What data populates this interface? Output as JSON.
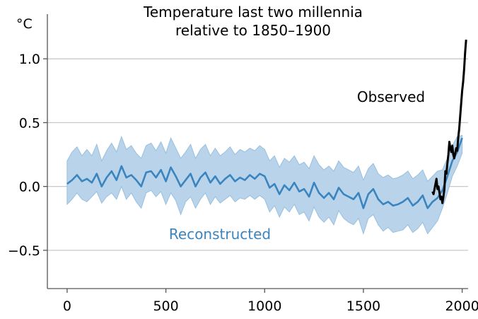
{
  "chart_data": {
    "type": "line",
    "title": [
      "Temperature last two millennia",
      "relative to 1850–1900"
    ],
    "ylabel": "°C",
    "xlabel": "",
    "xlim": [
      -100,
      2030
    ],
    "ylim": [
      -0.8,
      1.35
    ],
    "xticks": [
      0,
      500,
      1000,
      1500,
      2000
    ],
    "yticks": [
      1.0,
      0.5,
      0.0,
      -0.5
    ],
    "ytick_labels": [
      "1.0",
      "0.5",
      "0.0",
      "−0.5"
    ],
    "grid": "horizontal",
    "colors": {
      "reconstructed": "#3a84bf",
      "band": "#b9d4ea",
      "band_edge": "#98bfdf",
      "observed": "#000000",
      "grid": "#c8c8c8"
    },
    "annotations": {
      "reconstructed": "Reconstructed",
      "observed": "Observed"
    },
    "series": [
      {
        "name": "Reconstructed",
        "x": [
          0,
          25,
          50,
          75,
          100,
          125,
          150,
          175,
          200,
          225,
          250,
          275,
          300,
          325,
          350,
          375,
          400,
          425,
          450,
          475,
          500,
          525,
          550,
          575,
          600,
          625,
          650,
          675,
          700,
          725,
          750,
          775,
          800,
          825,
          850,
          875,
          900,
          925,
          950,
          975,
          1000,
          1025,
          1050,
          1075,
          1100,
          1125,
          1150,
          1175,
          1200,
          1225,
          1250,
          1275,
          1300,
          1325,
          1350,
          1375,
          1400,
          1425,
          1450,
          1475,
          1500,
          1525,
          1550,
          1575,
          1600,
          1625,
          1650,
          1675,
          1700,
          1725,
          1750,
          1775,
          1800,
          1825,
          1850,
          1875,
          1900,
          1925,
          1950,
          1975,
          2000
        ],
        "y": [
          0.02,
          0.05,
          0.09,
          0.04,
          0.06,
          0.03,
          0.1,
          0.0,
          0.07,
          0.12,
          0.05,
          0.16,
          0.07,
          0.09,
          0.05,
          0.0,
          0.11,
          0.12,
          0.07,
          0.13,
          0.04,
          0.15,
          0.08,
          0.0,
          0.05,
          0.1,
          0.0,
          0.07,
          0.11,
          0.03,
          0.08,
          0.02,
          0.06,
          0.09,
          0.04,
          0.07,
          0.05,
          0.09,
          0.06,
          0.1,
          0.08,
          -0.01,
          0.02,
          -0.06,
          0.01,
          -0.03,
          0.03,
          -0.04,
          -0.02,
          -0.08,
          0.03,
          -0.05,
          -0.09,
          -0.05,
          -0.1,
          -0.01,
          -0.06,
          -0.08,
          -0.1,
          -0.05,
          -0.17,
          -0.06,
          -0.02,
          -0.1,
          -0.14,
          -0.12,
          -0.15,
          -0.14,
          -0.12,
          -0.09,
          -0.15,
          -0.12,
          -0.07,
          -0.17,
          -0.12,
          -0.09,
          -0.03,
          0.08,
          0.2,
          0.27,
          0.38
        ],
        "lower": [
          -0.14,
          -0.1,
          -0.05,
          -0.1,
          -0.12,
          -0.08,
          -0.04,
          -0.13,
          -0.08,
          -0.05,
          -0.1,
          0.0,
          -0.1,
          -0.05,
          -0.12,
          -0.17,
          -0.05,
          -0.03,
          -0.08,
          -0.04,
          -0.14,
          -0.05,
          -0.11,
          -0.22,
          -0.12,
          -0.08,
          -0.17,
          -0.1,
          -0.05,
          -0.14,
          -0.08,
          -0.13,
          -0.1,
          -0.07,
          -0.12,
          -0.09,
          -0.1,
          -0.07,
          -0.1,
          -0.07,
          -0.1,
          -0.2,
          -0.15,
          -0.24,
          -0.16,
          -0.2,
          -0.14,
          -0.22,
          -0.2,
          -0.27,
          -0.16,
          -0.24,
          -0.28,
          -0.24,
          -0.3,
          -0.19,
          -0.25,
          -0.28,
          -0.3,
          -0.25,
          -0.37,
          -0.25,
          -0.22,
          -0.3,
          -0.35,
          -0.32,
          -0.36,
          -0.35,
          -0.34,
          -0.3,
          -0.36,
          -0.33,
          -0.28,
          -0.37,
          -0.32,
          -0.27,
          -0.17,
          -0.05,
          0.08,
          0.16,
          0.26
        ],
        "upper": [
          0.2,
          0.27,
          0.31,
          0.24,
          0.29,
          0.24,
          0.33,
          0.2,
          0.28,
          0.34,
          0.27,
          0.39,
          0.29,
          0.32,
          0.26,
          0.22,
          0.32,
          0.34,
          0.28,
          0.35,
          0.26,
          0.38,
          0.3,
          0.22,
          0.27,
          0.33,
          0.22,
          0.29,
          0.33,
          0.24,
          0.3,
          0.24,
          0.27,
          0.31,
          0.25,
          0.29,
          0.27,
          0.3,
          0.28,
          0.32,
          0.29,
          0.2,
          0.24,
          0.15,
          0.22,
          0.19,
          0.24,
          0.17,
          0.19,
          0.14,
          0.24,
          0.17,
          0.13,
          0.16,
          0.12,
          0.2,
          0.15,
          0.13,
          0.11,
          0.16,
          0.05,
          0.14,
          0.18,
          0.1,
          0.07,
          0.09,
          0.06,
          0.07,
          0.09,
          0.12,
          0.06,
          0.09,
          0.13,
          0.04,
          0.08,
          0.12,
          0.13,
          0.22,
          0.32,
          0.39,
          0.4
        ]
      },
      {
        "name": "Observed",
        "x": [
          1850,
          1855,
          1860,
          1865,
          1870,
          1875,
          1880,
          1885,
          1890,
          1895,
          1900,
          1905,
          1910,
          1915,
          1920,
          1925,
          1930,
          1935,
          1940,
          1945,
          1950,
          1955,
          1960,
          1965,
          1970,
          1975,
          1980,
          1985,
          1990,
          1995,
          2000,
          2005,
          2010,
          2015,
          2020
        ],
        "y": [
          -0.04,
          -0.06,
          -0.02,
          0.02,
          0.06,
          -0.02,
          0.0,
          -0.05,
          -0.1,
          -0.08,
          -0.13,
          -0.08,
          -0.02,
          0.12,
          0.1,
          0.18,
          0.25,
          0.35,
          0.3,
          0.27,
          0.32,
          0.25,
          0.22,
          0.26,
          0.3,
          0.28,
          0.38,
          0.45,
          0.55,
          0.65,
          0.75,
          0.82,
          0.92,
          1.05,
          1.15
        ]
      }
    ]
  }
}
